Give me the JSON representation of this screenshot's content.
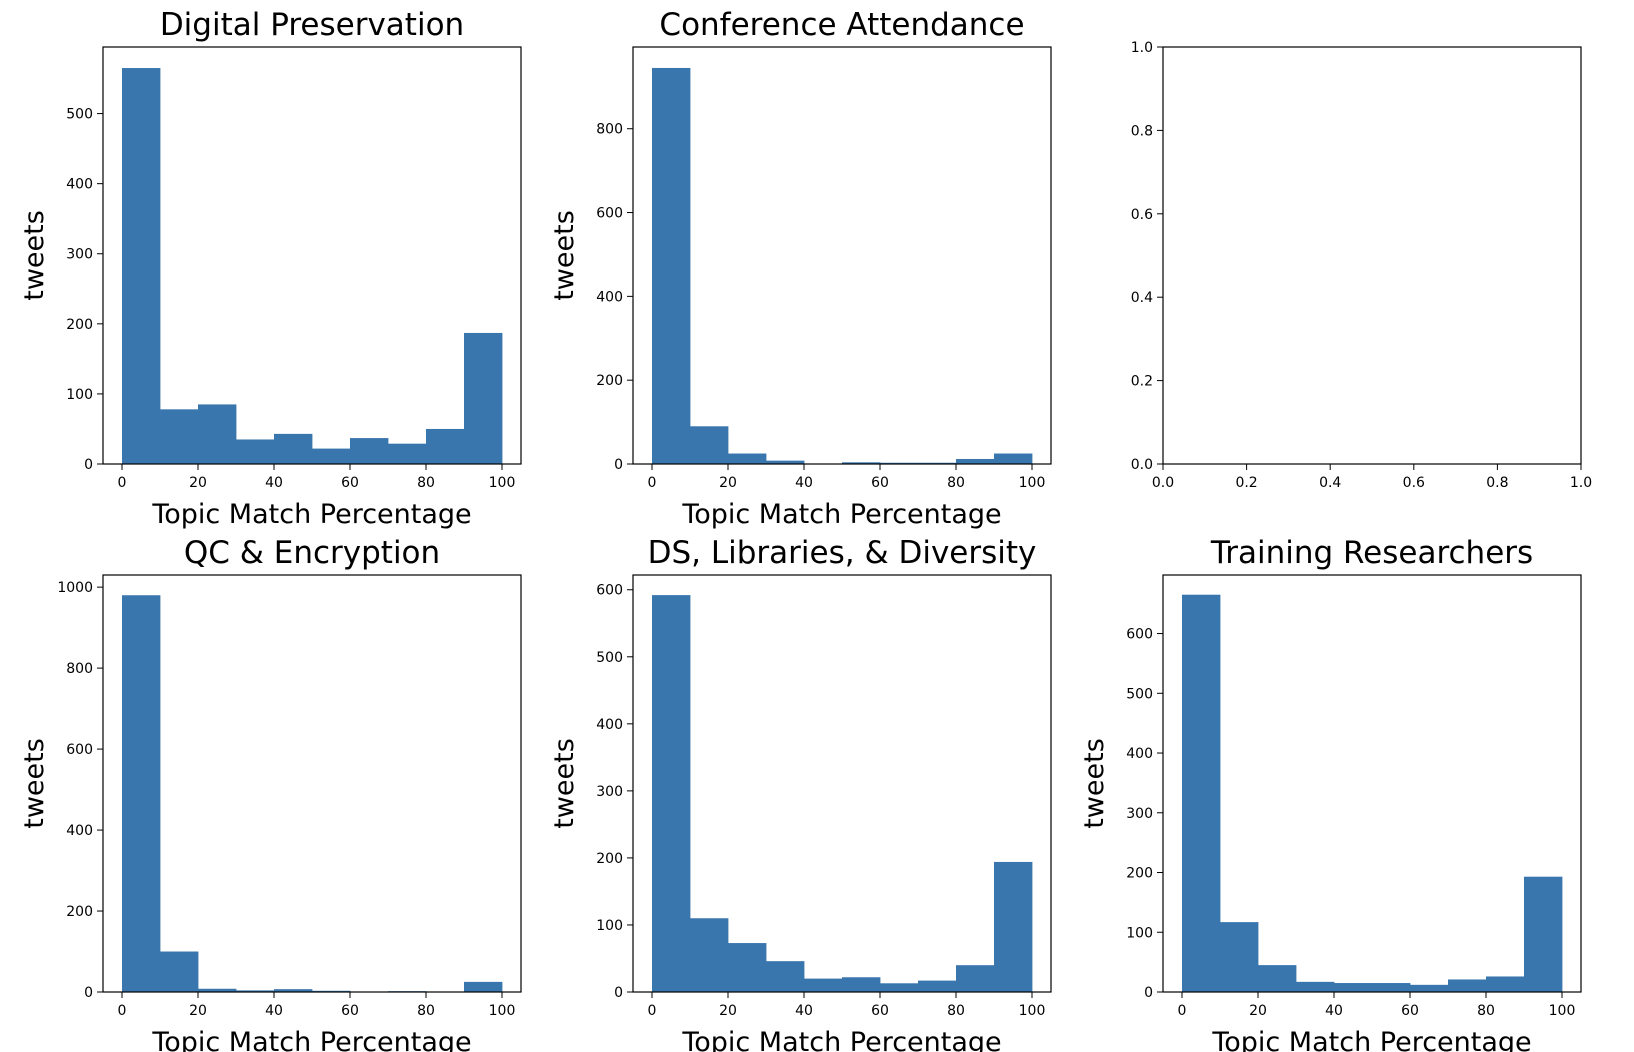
{
  "figure": {
    "background": "#ffffff",
    "bar_color": "#3a76ae"
  },
  "chart_data": [
    {
      "type": "bar",
      "title": "Digital Preservation",
      "xlabel": "Topic Match Percentage",
      "ylabel": "tweets",
      "bin_edges": [
        0,
        10,
        20,
        30,
        40,
        50,
        60,
        70,
        80,
        90,
        100
      ],
      "values": [
        565,
        78,
        85,
        35,
        43,
        22,
        37,
        29,
        50,
        187
      ],
      "xlim": [
        -5,
        105
      ],
      "ylim": [
        0,
        595
      ],
      "xticks": [
        0,
        20,
        40,
        60,
        80,
        100
      ],
      "xtick_labels": [
        "0",
        "20",
        "40",
        "60",
        "80",
        "100"
      ],
      "yticks": [
        0,
        100,
        200,
        300,
        400,
        500
      ],
      "ytick_labels": [
        "0",
        "100",
        "200",
        "300",
        "400",
        "500"
      ]
    },
    {
      "type": "bar",
      "title": "Conference Attendance",
      "xlabel": "Topic Match Percentage",
      "ylabel": "tweets",
      "bin_edges": [
        0,
        10,
        20,
        30,
        40,
        50,
        60,
        70,
        80,
        90,
        100
      ],
      "values": [
        945,
        90,
        25,
        8,
        1,
        4,
        3,
        3,
        12,
        25
      ],
      "xlim": [
        -5,
        105
      ],
      "ylim": [
        0,
        995
      ],
      "xticks": [
        0,
        20,
        40,
        60,
        80,
        100
      ],
      "xtick_labels": [
        "0",
        "20",
        "40",
        "60",
        "80",
        "100"
      ],
      "yticks": [
        0,
        200,
        400,
        600,
        800
      ],
      "ytick_labels": [
        "0",
        "200",
        "400",
        "600",
        "800"
      ]
    },
    {
      "type": "bar",
      "title": "",
      "xlabel": "",
      "ylabel": "",
      "bin_edges": [],
      "values": [],
      "xlim": [
        0,
        1
      ],
      "ylim": [
        0,
        1
      ],
      "xticks": [
        0,
        0.2,
        0.4,
        0.6,
        0.8,
        1.0
      ],
      "xtick_labels": [
        "0.0",
        "0.2",
        "0.4",
        "0.6",
        "0.8",
        "1.0"
      ],
      "yticks": [
        0,
        0.2,
        0.4,
        0.6,
        0.8,
        1.0
      ],
      "ytick_labels": [
        "0.0",
        "0.2",
        "0.4",
        "0.6",
        "0.8",
        "1.0"
      ]
    },
    {
      "type": "bar",
      "title": "QC & Encryption",
      "xlabel": "Topic Match Percentage",
      "ylabel": "tweets",
      "bin_edges": [
        0,
        10,
        20,
        30,
        40,
        50,
        60,
        70,
        80,
        90,
        100
      ],
      "values": [
        980,
        100,
        8,
        4,
        7,
        3,
        0,
        2,
        0,
        25
      ],
      "xlim": [
        -5,
        105
      ],
      "ylim": [
        0,
        1030
      ],
      "xticks": [
        0,
        20,
        40,
        60,
        80,
        100
      ],
      "xtick_labels": [
        "0",
        "20",
        "40",
        "60",
        "80",
        "100"
      ],
      "yticks": [
        0,
        200,
        400,
        600,
        800,
        1000
      ],
      "ytick_labels": [
        "0",
        "200",
        "400",
        "600",
        "800",
        "1000"
      ]
    },
    {
      "type": "bar",
      "title": "DS, Libraries, & Diversity",
      "xlabel": "Topic Match Percentage",
      "ylabel": "tweets",
      "bin_edges": [
        0,
        10,
        20,
        30,
        40,
        50,
        60,
        70,
        80,
        90,
        100
      ],
      "values": [
        592,
        110,
        73,
        46,
        20,
        22,
        13,
        17,
        40,
        194
      ],
      "xlim": [
        -5,
        105
      ],
      "ylim": [
        0,
        622
      ],
      "xticks": [
        0,
        20,
        40,
        60,
        80,
        100
      ],
      "xtick_labels": [
        "0",
        "20",
        "40",
        "60",
        "80",
        "100"
      ],
      "yticks": [
        0,
        100,
        200,
        300,
        400,
        500,
        600
      ],
      "ytick_labels": [
        "0",
        "100",
        "200",
        "300",
        "400",
        "500",
        "600"
      ]
    },
    {
      "type": "bar",
      "title": "Training Researchers",
      "xlabel": "Topic Match Percentage",
      "ylabel": "tweets",
      "bin_edges": [
        0,
        10,
        20,
        30,
        40,
        50,
        60,
        70,
        80,
        90,
        100
      ],
      "values": [
        665,
        117,
        45,
        17,
        15,
        15,
        12,
        21,
        26,
        193
      ],
      "xlim": [
        -5,
        105
      ],
      "ylim": [
        0,
        698
      ],
      "xticks": [
        0,
        20,
        40,
        60,
        80,
        100
      ],
      "xtick_labels": [
        "0",
        "20",
        "40",
        "60",
        "80",
        "100"
      ],
      "yticks": [
        0,
        100,
        200,
        300,
        400,
        500,
        600
      ],
      "ytick_labels": [
        "0",
        "100",
        "200",
        "300",
        "400",
        "500",
        "600"
      ]
    }
  ]
}
